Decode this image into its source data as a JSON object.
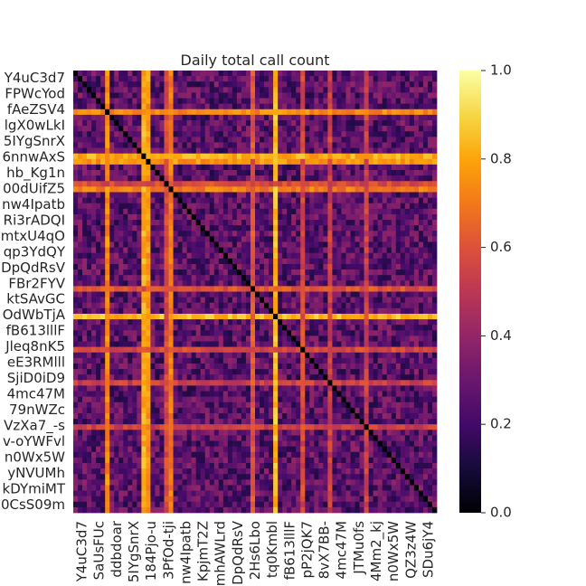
{
  "chart_data": {
    "type": "heatmap",
    "title": "Daily total call count",
    "colormap": "inferno",
    "diagonal_value": 0,
    "colorbar": {
      "min": 0.0,
      "max": 1.0,
      "ticks": [
        "0.0",
        "0.2",
        "0.4",
        "0.6",
        "0.8",
        "1.0"
      ]
    },
    "y_tick_labels": [
      "Y4uC3d7",
      "FPWcYod",
      "fAeZSV4",
      "lgX0wLkI",
      "5IYgSnrX",
      "6nnwAxS",
      "hb_Kg1n",
      "00dUifZ5",
      "nw4Ipatb",
      "Ri3rADQI",
      "mtxU4qO",
      "qp3YdQY",
      "DpQdRsV",
      "FBr2FYV",
      "ktSAvGC",
      "OdWbTjA",
      "fB613lllF",
      "Jleq8nK5",
      "eE3RMlll",
      "SjiD0iD9",
      "4mc47M",
      "79nWZc",
      "VzXa7_-s",
      "v-oYWFvl",
      "n0Wx5W",
      "yNVUMh",
      "kDYmiMT",
      "0CsS09m"
    ],
    "x_tick_labels": [
      "Y4uC3d7",
      "SaUsFUc",
      "ddbdoar",
      "5IYgSnrX",
      "184Pjo-u",
      "3PfOd-tji",
      "nw4Ipatb",
      "KpjmT2Z",
      "mhAWLrd",
      "DpQdRsV",
      "2Hs6Lbo",
      "tq0Kmbl",
      "fB613lllF",
      "pP2jQK7",
      "8vX7BB-",
      "4mc47M",
      "JTMu0fs",
      "4Mm2_kj",
      "n0Wx5W",
      "QZ3z4W",
      "SDu6jY4"
    ],
    "highlight_rows": [
      {
        "index": 7,
        "value": 0.75
      },
      {
        "index": 15,
        "value": 0.82
      },
      {
        "index": 20,
        "value": 0.58
      },
      {
        "index": 39,
        "value": 0.62
      },
      {
        "index": 50,
        "value": 0.58
      }
    ],
    "highlight_cols": [
      {
        "index": 16,
        "value": 0.78
      },
      {
        "index": 21,
        "value": 0.72
      },
      {
        "index": 44,
        "value": 0.85
      },
      {
        "index": 56,
        "value": 0.55
      },
      {
        "index": 64,
        "value": 0.55
      }
    ],
    "matrix_note": "",
    "n": 80,
    "seed": 7
  }
}
